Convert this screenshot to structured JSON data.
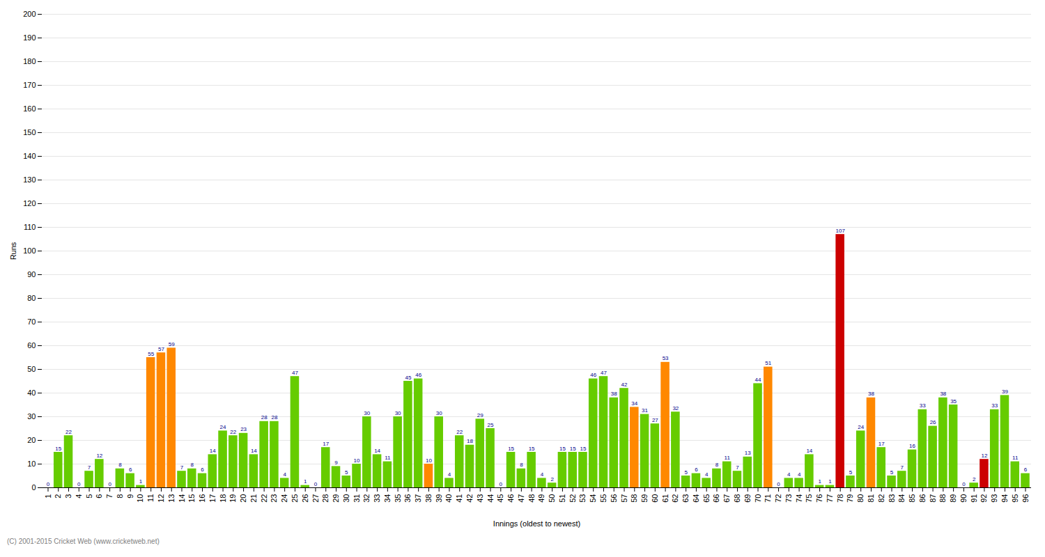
{
  "chart_data": {
    "type": "bar",
    "xlabel": "Innings (oldest to newest)",
    "ylabel": "Runs",
    "categories": [
      "1",
      "2",
      "3",
      "4",
      "5",
      "6",
      "7",
      "8",
      "9",
      "10",
      "11",
      "12",
      "13",
      "14",
      "15",
      "16",
      "17",
      "18",
      "19",
      "20",
      "21",
      "22",
      "23",
      "24",
      "25",
      "26",
      "27",
      "28",
      "29",
      "30",
      "31",
      "32",
      "33",
      "34",
      "35",
      "36",
      "37",
      "38",
      "39",
      "40",
      "41",
      "42",
      "43",
      "44",
      "45",
      "46",
      "47",
      "48",
      "49",
      "50",
      "51",
      "52",
      "53",
      "54",
      "55",
      "56",
      "57",
      "58",
      "59",
      "60",
      "61",
      "62",
      "63",
      "64",
      "65",
      "66",
      "67",
      "68",
      "69",
      "70",
      "71",
      "72",
      "73",
      "74",
      "75",
      "76",
      "77",
      "78",
      "79",
      "80",
      "81",
      "82",
      "83",
      "84",
      "85",
      "86",
      "87",
      "88",
      "89",
      "90",
      "91",
      "92",
      "93",
      "94",
      "95",
      "96"
    ],
    "values": [
      0,
      15,
      22,
      0,
      7,
      12,
      0,
      8,
      6,
      1,
      55,
      57,
      59,
      7,
      8,
      6,
      14,
      24,
      22,
      23,
      14,
      28,
      28,
      4,
      47,
      1,
      0,
      17,
      9,
      5,
      10,
      30,
      14,
      11,
      30,
      45,
      46,
      10,
      30,
      4,
      22,
      18,
      29,
      25,
      0,
      15,
      8,
      15,
      4,
      2,
      15,
      15,
      15,
      46,
      47,
      38,
      42,
      34,
      31,
      27,
      53,
      32,
      5,
      6,
      4,
      8,
      11,
      7,
      13,
      44,
      51,
      0,
      4,
      4,
      14,
      1,
      1,
      107,
      5,
      24,
      38,
      17,
      5,
      7,
      16,
      33,
      26,
      38,
      35,
      0,
      2,
      12,
      33,
      39,
      11,
      6
    ],
    "colors": [
      "#66cc00",
      "#66cc00",
      "#66cc00",
      "#66cc00",
      "#66cc00",
      "#66cc00",
      "#66cc00",
      "#66cc00",
      "#66cc00",
      "#66cc00",
      "#ff8800",
      "#ff8800",
      "#ff8800",
      "#66cc00",
      "#66cc00",
      "#66cc00",
      "#66cc00",
      "#66cc00",
      "#66cc00",
      "#66cc00",
      "#66cc00",
      "#66cc00",
      "#66cc00",
      "#66cc00",
      "#66cc00",
      "#66cc00",
      "#ff8800",
      "#66cc00",
      "#66cc00",
      "#66cc00",
      "#66cc00",
      "#66cc00",
      "#66cc00",
      "#66cc00",
      "#66cc00",
      "#66cc00",
      "#66cc00",
      "#ff8800",
      "#66cc00",
      "#66cc00",
      "#66cc00",
      "#66cc00",
      "#66cc00",
      "#66cc00",
      "#ff8800",
      "#66cc00",
      "#66cc00",
      "#66cc00",
      "#66cc00",
      "#66cc00",
      "#66cc00",
      "#66cc00",
      "#66cc00",
      "#66cc00",
      "#66cc00",
      "#66cc00",
      "#66cc00",
      "#ff8800",
      "#66cc00",
      "#66cc00",
      "#ff8800",
      "#66cc00",
      "#66cc00",
      "#66cc00",
      "#66cc00",
      "#66cc00",
      "#66cc00",
      "#66cc00",
      "#66cc00",
      "#66cc00",
      "#ff8800",
      "#66cc00",
      "#66cc00",
      "#66cc00",
      "#66cc00",
      "#66cc00",
      "#66cc00",
      "#cc0000",
      "#66cc00",
      "#66cc00",
      "#ff8800",
      "#66cc00",
      "#66cc00",
      "#66cc00",
      "#66cc00",
      "#66cc00",
      "#66cc00",
      "#66cc00",
      "#66cc00",
      "#66cc00",
      "#66cc00",
      "#cc0000",
      "#66cc00",
      "#66cc00",
      "#66cc00",
      "#66cc00"
    ],
    "ylim": [
      0,
      200
    ],
    "yticks": [
      0,
      10,
      20,
      30,
      40,
      50,
      60,
      70,
      80,
      90,
      100,
      110,
      120,
      130,
      140,
      150,
      160,
      170,
      180,
      190,
      200
    ],
    "grid": true,
    "data_labels": true,
    "annotations": [
      "(C) 2001-2015 Cricket Web (www.cricketweb.net)"
    ]
  }
}
